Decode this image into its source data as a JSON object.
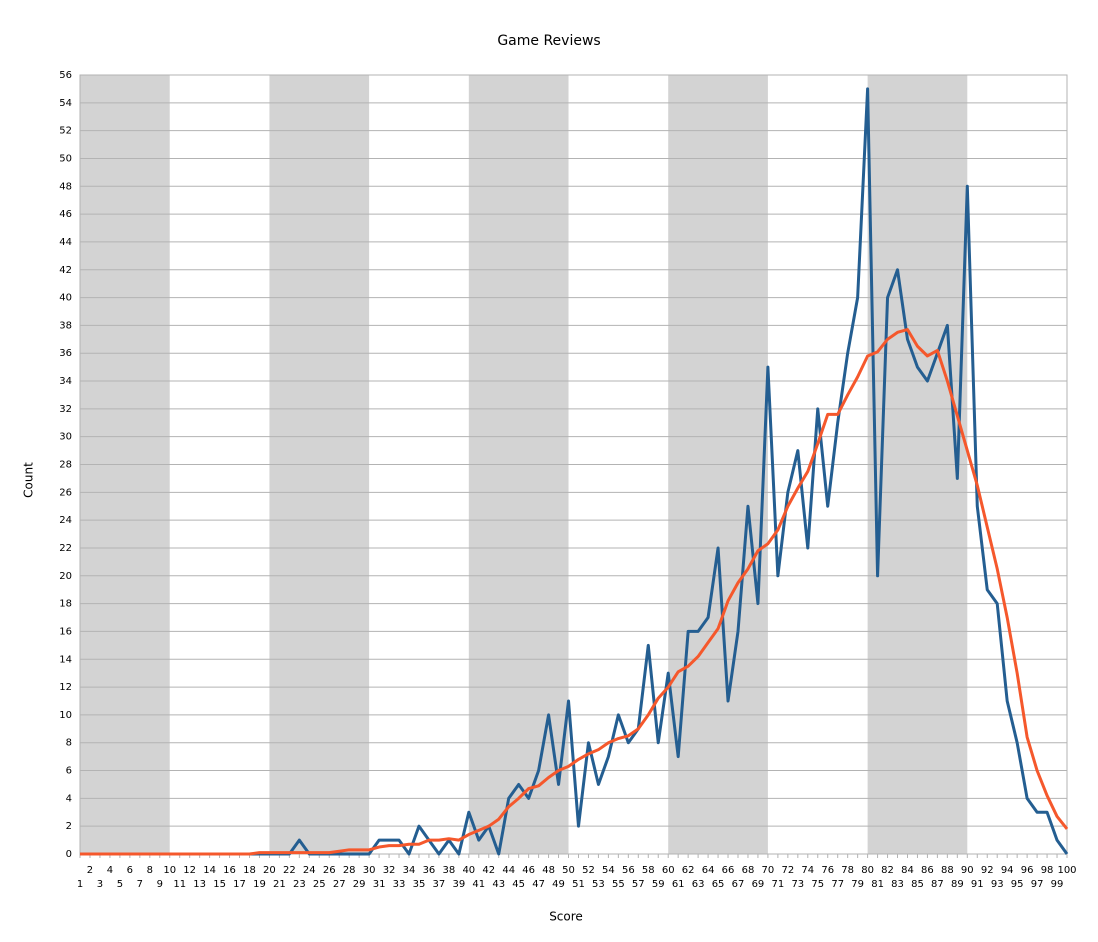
{
  "chart_data": {
    "type": "line",
    "title": "Game Reviews",
    "x_label": "Score",
    "y_label": "Count",
    "x": [
      1,
      2,
      3,
      4,
      5,
      6,
      7,
      8,
      9,
      10,
      11,
      12,
      13,
      14,
      15,
      16,
      17,
      18,
      19,
      20,
      21,
      22,
      23,
      24,
      25,
      26,
      27,
      28,
      29,
      30,
      31,
      32,
      33,
      34,
      35,
      36,
      37,
      38,
      39,
      40,
      41,
      42,
      43,
      44,
      45,
      46,
      47,
      48,
      49,
      50,
      51,
      52,
      53,
      54,
      55,
      56,
      57,
      58,
      59,
      60,
      61,
      62,
      63,
      64,
      65,
      66,
      67,
      68,
      69,
      70,
      71,
      72,
      73,
      74,
      75,
      76,
      77,
      78,
      79,
      80,
      81,
      82,
      83,
      84,
      85,
      86,
      87,
      88,
      89,
      90,
      91,
      92,
      93,
      94,
      95,
      96,
      97,
      98,
      99,
      100
    ],
    "xlim": [
      1,
      100
    ],
    "shaded_ranges": [
      [
        1,
        10
      ],
      [
        20,
        30
      ],
      [
        40,
        50
      ],
      [
        60,
        70
      ],
      [
        80,
        90
      ]
    ],
    "series": [
      {
        "color": "#245e91",
        "values": [
          0,
          0,
          0,
          0,
          0,
          0,
          0,
          0,
          0,
          0,
          0,
          0,
          0,
          0,
          0,
          0,
          0,
          0,
          0,
          0,
          0,
          0,
          1,
          0,
          0,
          0,
          0,
          0,
          0,
          0,
          1,
          1,
          1,
          0,
          2,
          1,
          0,
          1,
          0,
          3,
          1,
          2,
          0,
          4,
          5,
          4,
          6,
          10,
          5,
          11,
          2,
          8,
          5,
          7,
          10,
          8,
          9,
          15,
          8,
          13,
          7,
          16,
          16,
          17,
          22,
          11,
          16,
          25,
          18,
          35,
          20,
          26,
          29,
          22,
          32,
          25,
          31,
          36,
          40,
          55,
          20,
          40,
          42,
          37,
          35,
          34,
          36,
          38,
          27,
          48,
          25,
          19,
          18,
          11,
          8,
          4,
          3,
          3,
          1,
          0
        ]
      },
      {
        "color": "#f5582c",
        "values": [
          0,
          0,
          0,
          0,
          0,
          0,
          0,
          0,
          0,
          0,
          0,
          0,
          0,
          0,
          0,
          0,
          0,
          0,
          0.1,
          0.1,
          0.1,
          0.1,
          0.1,
          0.1,
          0.1,
          0.1,
          0.2,
          0.3,
          0.3,
          0.3,
          0.5,
          0.6,
          0.6,
          0.7,
          0.7,
          1,
          1,
          1.1,
          1,
          1.4,
          1.7,
          2,
          2.5,
          3.4,
          4,
          4.7,
          4.9,
          5.5,
          6,
          6.3,
          6.8,
          7.2,
          7.5,
          8,
          8.3,
          8.5,
          9,
          10,
          11.2,
          12,
          13.1,
          13.5,
          14.2,
          15.2,
          16.2,
          18.2,
          19.5,
          20.5,
          21.8,
          22.3,
          23.3,
          25,
          26.3,
          27.5,
          29.5,
          31.6,
          31.6,
          33,
          34.3,
          35.8,
          36.1,
          37,
          37.5,
          37.7,
          36.5,
          35.8,
          36.2,
          34,
          31.5,
          29,
          26.5,
          23.5,
          20.5,
          17,
          13,
          8.4,
          6,
          4.2,
          2.7,
          1.8
        ]
      }
    ],
    "ylim": [
      0,
      56
    ],
    "yticks": [
      0,
      2,
      4,
      6,
      8,
      10,
      12,
      14,
      16,
      18,
      20,
      22,
      24,
      26,
      28,
      30,
      32,
      34,
      36,
      38,
      40,
      42,
      44,
      46,
      48,
      50,
      52,
      54,
      56
    ],
    "grid": true
  }
}
